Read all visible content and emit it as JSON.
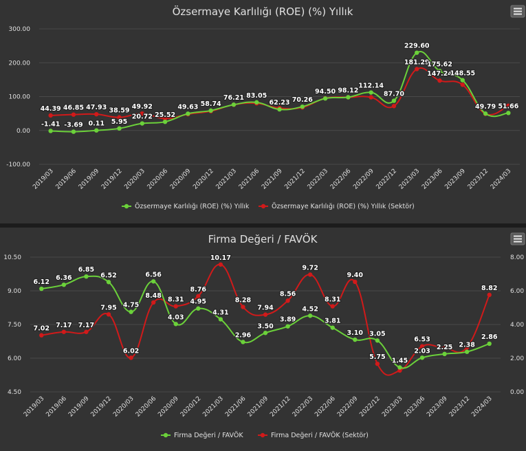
{
  "colors": {
    "green": "#6bd13a",
    "red": "#d11a1a",
    "grid": "#4a4a4a",
    "text": "#e0e0e0"
  },
  "chart_data": [
    {
      "type": "line",
      "title": "Özsermaye Karlılığı (ROE) (%) Yıllık",
      "menu_icon": "hamburger-menu-icon",
      "categories": [
        "2019/03",
        "2019/06",
        "2019/09",
        "2019/12",
        "2020/03",
        "2020/06",
        "2020/09",
        "2020/12",
        "2021/03",
        "2021/06",
        "2021/09",
        "2021/12",
        "2022/03",
        "2022/06",
        "2022/09",
        "2022/12",
        "2023/03",
        "2023/06",
        "2023/09",
        "2023/12",
        "2024/03"
      ],
      "ylim": [
        -100,
        300
      ],
      "yticks": [
        "-100.00",
        "0.00",
        "100.00",
        "200.00",
        "300.00"
      ],
      "ytick_values": [
        -100,
        0,
        100,
        200,
        300
      ],
      "grid": true,
      "legend_position": "bottom",
      "series": [
        {
          "name": "Özsermaye Karlılığı (ROE) (%) Yıllık",
          "color": "#6bd13a",
          "values": [
            -1.41,
            -3.69,
            0.11,
            5.95,
            20.72,
            25.52,
            49.63,
            58.74,
            76.21,
            83.05,
            62.23,
            70.26,
            94.5,
            98.12,
            112.14,
            87.7,
            229.6,
            175.62,
            148.55,
            49.79,
            51.66
          ],
          "labels": [
            "-1.41",
            "-3.69",
            "0.11",
            "5.95",
            "20.72",
            "25.52",
            "49.63",
            "58.74",
            "76.21",
            "83.05",
            "62.23",
            "70.26",
            "94.50",
            "98.12",
            "112.14",
            "87.70",
            "229.60",
            "175.62",
            "148.55",
            "49.79",
            "51.66"
          ]
        },
        {
          "name": "Özsermaye Karlılığı (ROE) (%) Yıllık (Sektör)",
          "color": "#d11a1a",
          "values": [
            44.39,
            46.85,
            47.93,
            38.59,
            49.92,
            35,
            48,
            57,
            76,
            80,
            66,
            68,
            95,
            98,
            98,
            72,
            181.29,
            147.24,
            135,
            49,
            73
          ],
          "labels": [
            "44.39",
            "46.85",
            "47.93",
            "38.59",
            "49.92",
            "",
            "",
            "",
            "",
            "",
            "",
            "",
            "",
            "",
            "",
            "",
            "181.29",
            "147.24",
            "",
            "",
            ""
          ]
        }
      ]
    },
    {
      "type": "line",
      "title": "Firma Değeri / FAVÖK",
      "menu_icon": "hamburger-menu-icon",
      "categories": [
        "2019/03",
        "2019/06",
        "2019/09",
        "2019/12",
        "2020/03",
        "2020/06",
        "2020/09",
        "2020/12",
        "2021/03",
        "2021/06",
        "2021/09",
        "2021/12",
        "2022/03",
        "2022/06",
        "2022/09",
        "2022/12",
        "2023/03",
        "2023/06",
        "2023/09",
        "2023/12",
        "2024/03"
      ],
      "ylim_left": [
        4.5,
        10.5
      ],
      "yticks_left": [
        "4.50",
        "6.00",
        "7.50",
        "9.00",
        "10.50"
      ],
      "ytick_values_left": [
        4.5,
        6.0,
        7.5,
        9.0,
        10.5
      ],
      "ylim_right": [
        0,
        8
      ],
      "yticks_right": [
        "0.00",
        "2.00",
        "4.00",
        "6.00",
        "8.00"
      ],
      "ytick_values_right": [
        0,
        2,
        4,
        6,
        8
      ],
      "grid": true,
      "legend_position": "bottom",
      "series": [
        {
          "name": "Firma Değeri / FAVÖK",
          "color": "#6bd13a",
          "axis": "right",
          "values": [
            6.12,
            6.36,
            6.85,
            6.52,
            4.75,
            6.56,
            4.03,
            4.95,
            4.31,
            2.96,
            3.5,
            3.89,
            4.52,
            3.81,
            3.1,
            3.05,
            1.45,
            2.03,
            2.25,
            2.38,
            2.86
          ],
          "labels": [
            "6.12",
            "6.36",
            "6.85",
            "6.52",
            "4.75",
            "6.56",
            "4.03",
            "4.95",
            "4.31",
            "2.96",
            "3.50",
            "3.89",
            "4.52",
            "3.81",
            "3.10",
            "3.05",
            "1.45",
            "2.03",
            "2.25",
            "2.38",
            "2.86"
          ]
        },
        {
          "name": "Firma Değeri / FAVÖK (Sektör)",
          "color": "#d11a1a",
          "axis": "left",
          "values": [
            7.02,
            7.17,
            7.17,
            7.95,
            6.02,
            8.48,
            8.31,
            8.76,
            10.17,
            8.28,
            7.94,
            8.56,
            9.72,
            8.31,
            9.4,
            5.75,
            5.45,
            6.53,
            6.45,
            6.48,
            8.82
          ],
          "labels": [
            "7.02",
            "7.17",
            "7.17",
            "7.95",
            "6.02",
            "8.48",
            "8.31",
            "8.76",
            "10.17",
            "8.28",
            "7.94",
            "8.56",
            "9.72",
            "8.31",
            "9.40",
            "5.75",
            "",
            "6.53",
            "",
            "",
            "8.82"
          ]
        }
      ]
    }
  ]
}
